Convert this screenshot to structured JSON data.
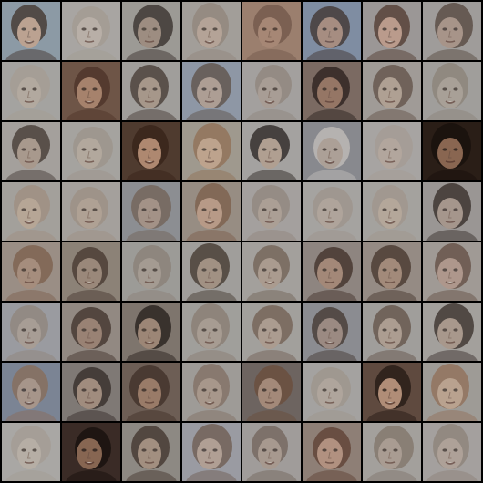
{
  "grid": {
    "rows": 8,
    "cols": 8,
    "border_color": "#000000",
    "tiles": [
      {
        "bg": "#8c9aa6",
        "skin": "#c8a58c",
        "hair": "#3a2a20",
        "dark": false
      },
      {
        "bg": "#a8a6a2",
        "skin": "#bdb3a8",
        "hair": "#a29a8f",
        "dark": false
      },
      {
        "bg": "#9d9a95",
        "skin": "#9e8a7b",
        "hair": "#2d2520",
        "dark": false
      },
      {
        "bg": "#a29e99",
        "skin": "#b9a596",
        "hair": "#8f8378",
        "dark": false
      },
      {
        "bg": "#9b7f6f",
        "skin": "#a98978",
        "hair": "#6e5447",
        "dark": false
      },
      {
        "bg": "#7f8da2",
        "skin": "#b18e78",
        "hair": "#3b2b23",
        "dark": false
      },
      {
        "bg": "#9b9896",
        "skin": "#c39d89",
        "hair": "#4a3226",
        "dark": false
      },
      {
        "bg": "#9f9d9a",
        "skin": "#a99385",
        "hair": "#4f3f35",
        "dark": false
      },
      {
        "bg": "#a5a3a0",
        "skin": "#b7ab9f",
        "hair": "#a69c92",
        "dark": false
      },
      {
        "bg": "#6f5547",
        "skin": "#b78f77",
        "hair": "#4a3025",
        "dark": false
      },
      {
        "bg": "#a09e9c",
        "skin": "#a89586",
        "hair": "#3d302a",
        "dark": false
      },
      {
        "bg": "#8f98a6",
        "skin": "#b6a090",
        "hair": "#5a4a40",
        "dark": false
      },
      {
        "bg": "#a3a19e",
        "skin": "#a99d92",
        "hair": "#8e8379",
        "dark": false
      },
      {
        "bg": "#7b6b62",
        "skin": "#9d7a66",
        "hair": "#231a16",
        "dark": false
      },
      {
        "bg": "#a09c98",
        "skin": "#b4a293",
        "hair": "#5c4b40",
        "dark": false
      },
      {
        "bg": "#a09e9b",
        "skin": "#aba197",
        "hair": "#8a7f76",
        "dark": false
      },
      {
        "bg": "#a4a19d",
        "skin": "#aa988a",
        "hair": "#3b2f29",
        "dark": false
      },
      {
        "bg": "#a6a39f",
        "skin": "#b7aa9d",
        "hair": "#9c9288",
        "dark": false
      },
      {
        "bg": "#503b30",
        "skin": "#b48d74",
        "hair": "#3a261c",
        "dark": true
      },
      {
        "bg": "#9f998f",
        "skin": "#c6a68e",
        "hair": "#8f6c50",
        "dark": false
      },
      {
        "bg": "#a5a2a0",
        "skin": "#b49e8e",
        "hair": "#1f1816",
        "dark": false
      },
      {
        "bg": "#888a8f",
        "skin": "#b7a79a",
        "hair": "#c9c3bf",
        "dark": false
      },
      {
        "bg": "#a7a5a2",
        "skin": "#b5a79b",
        "hair": "#a59b92",
        "dark": false
      },
      {
        "bg": "#2b1e18",
        "skin": "#8f6a55",
        "hair": "#1a110d",
        "dark": true
      },
      {
        "bg": "#a3a09c",
        "skin": "#bca895",
        "hair": "#9e8d7e",
        "dark": false
      },
      {
        "bg": "#a4a19d",
        "skin": "#b3a293",
        "hair": "#9c8e82",
        "dark": false
      },
      {
        "bg": "#8c8f92",
        "skin": "#aa9484",
        "hair": "#6f5e52",
        "dark": false
      },
      {
        "bg": "#988d83",
        "skin": "#c09e88",
        "hair": "#7a5a45",
        "dark": false
      },
      {
        "bg": "#a4a19e",
        "skin": "#ad9f93",
        "hair": "#8f847a",
        "dark": false
      },
      {
        "bg": "#a6a3a0",
        "skin": "#b2a59a",
        "hair": "#9d928a",
        "dark": false
      },
      {
        "bg": "#a5a29e",
        "skin": "#b9a899",
        "hair": "#a0948a",
        "dark": false
      },
      {
        "bg": "#9a9794",
        "skin": "#a8968a",
        "hair": "#2b211c",
        "dark": false
      },
      {
        "bg": "#9a8f86",
        "skin": "#a88d7b",
        "hair": "#7a5c48",
        "dark": false
      },
      {
        "bg": "#8c8278",
        "skin": "#9e8a7c",
        "hair": "#3f3028",
        "dark": false
      },
      {
        "bg": "#9d9b98",
        "skin": "#a79b91",
        "hair": "#8a7e74",
        "dark": false
      },
      {
        "bg": "#a09e9b",
        "skin": "#a28d7d",
        "hair": "#3a2d25",
        "dark": false
      },
      {
        "bg": "#a3a09d",
        "skin": "#ac9a8c",
        "hair": "#6d5c50",
        "dark": false
      },
      {
        "bg": "#8f8680",
        "skin": "#a98a76",
        "hair": "#3a2820",
        "dark": false
      },
      {
        "bg": "#958b84",
        "skin": "#a68a78",
        "hair": "#3e2c24",
        "dark": false
      },
      {
        "bg": "#a09a95",
        "skin": "#b2978a",
        "hair": "#5d473b",
        "dark": false
      },
      {
        "bg": "#9a9ba0",
        "skin": "#ab9e93",
        "hair": "#8f8479",
        "dark": false
      },
      {
        "bg": "#928a82",
        "skin": "#9b8070",
        "hair": "#3a2a22",
        "dark": false
      },
      {
        "bg": "#7e756e",
        "skin": "#a58b79",
        "hair": "#1d1613",
        "dark": false
      },
      {
        "bg": "#a19f9c",
        "skin": "#aa9c90",
        "hair": "#86796e",
        "dark": false
      },
      {
        "bg": "#a2a09d",
        "skin": "#ae9b8e",
        "hair": "#6e5a4d",
        "dark": false
      },
      {
        "bg": "#8b8c91",
        "skin": "#9f8a7e",
        "hair": "#3c3029",
        "dark": false
      },
      {
        "bg": "#a19e9b",
        "skin": "#b09d8f",
        "hair": "#5e4b40",
        "dark": false
      },
      {
        "bg": "#a3a09d",
        "skin": "#a99688",
        "hair": "#2f2520",
        "dark": false
      },
      {
        "bg": "#7c8494",
        "skin": "#b39a87",
        "hair": "#8a6a52",
        "dark": false
      },
      {
        "bg": "#7f7975",
        "skin": "#aa9181",
        "hair": "#2e2320",
        "dark": false
      },
      {
        "bg": "#6e5e55",
        "skin": "#a6836e",
        "hair": "#3c2b23",
        "dark": false
      },
      {
        "bg": "#9e9b98",
        "skin": "#aa9788",
        "hair": "#7e6c5f",
        "dark": false
      },
      {
        "bg": "#6e6460",
        "skin": "#b29480",
        "hair": "#6a4a38",
        "dark": false
      },
      {
        "bg": "#a4a2a0",
        "skin": "#b2a69c",
        "hair": "#9d938a",
        "dark": false
      },
      {
        "bg": "#5f4a40",
        "skin": "#b5917b",
        "hair": "#2a1e18",
        "dark": true
      },
      {
        "bg": "#9e9b97",
        "skin": "#c1a48d",
        "hair": "#8f6c52",
        "dark": false
      },
      {
        "bg": "#a9a7a4",
        "skin": "#bab0a6",
        "hair": "#a49b92",
        "dark": false
      },
      {
        "bg": "#3a2c26",
        "skin": "#8c6a55",
        "hair": "#1b130f",
        "dark": true
      },
      {
        "bg": "#8e8983",
        "skin": "#a8917f",
        "hair": "#3a2c24",
        "dark": false
      },
      {
        "bg": "#9a9ba2",
        "skin": "#b7a190",
        "hair": "#6a5648",
        "dark": false
      },
      {
        "bg": "#a09d9a",
        "skin": "#a9998c",
        "hair": "#6f6056",
        "dark": false
      },
      {
        "bg": "#8f7f77",
        "skin": "#bb9683",
        "hair": "#5a3a2c",
        "dark": false
      },
      {
        "bg": "#a3a09d",
        "skin": "#ab9c90",
        "hair": "#7e7166",
        "dark": false
      },
      {
        "bg": "#a4a19e",
        "skin": "#b1a296",
        "hair": "#8c7f74",
        "dark": false
      }
    ]
  }
}
